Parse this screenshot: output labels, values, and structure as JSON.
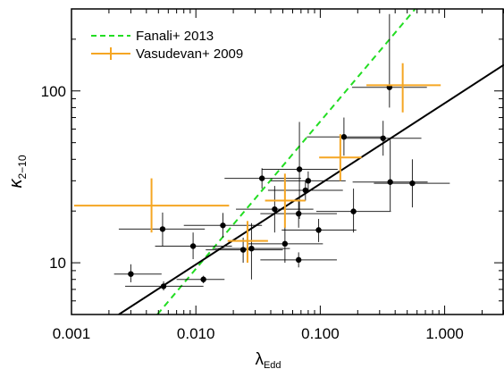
{
  "chart_data": {
    "type": "scatter",
    "x_scale": "log",
    "y_scale": "log",
    "xlim": [
      0.001,
      3.0
    ],
    "ylim": [
      5,
      300
    ],
    "xlabel_main": "λ",
    "xlabel_sub": "Edd",
    "ylabel_main": "κ",
    "ylabel_sub": "2−10",
    "x_ticks": [
      {
        "value": 0.001,
        "label": "0.001"
      },
      {
        "value": 0.01,
        "label": "0.010"
      },
      {
        "value": 0.1,
        "label": "0.100"
      },
      {
        "value": 1.0,
        "label": "1.000"
      }
    ],
    "y_ticks": [
      {
        "value": 10,
        "label": "10"
      },
      {
        "value": 100,
        "label": "100"
      }
    ],
    "legend": {
      "placement": "top-left",
      "entries": [
        {
          "label": "Fanali+ 2013",
          "color": "#22dd22",
          "style": "dashed-line"
        },
        {
          "label": "Vasudevan+ 2009",
          "color": "#f5a623",
          "style": "errorbar"
        }
      ]
    },
    "colors": {
      "black_series": "#000000",
      "orange_series": "#f5a623",
      "green_line": "#22dd22",
      "fit_line": "#000000"
    },
    "series": [
      {
        "color": "#000000",
        "marker": "circle",
        "points": [
          {
            "x": 0.003,
            "y": 8.6,
            "xerr": [
              0.0022,
              0.0053
            ],
            "yerr": [
              7.7,
              9.8
            ]
          },
          {
            "x": 0.0055,
            "y": 7.3,
            "xerr": [
              0.0027,
              0.0115
            ],
            "yerr": [
              6.9,
              7.8
            ]
          },
          {
            "x": 0.0054,
            "y": 15.7,
            "xerr": [
              0.0024,
              0.0118
            ],
            "yerr": [
              12.5,
              19.6
            ]
          },
          {
            "x": 0.0095,
            "y": 12.5,
            "xerr": [
              0.0047,
              0.0195
            ],
            "yerr": [
              10.5,
              15.0
            ]
          },
          {
            "x": 0.0115,
            "y": 8.0,
            "xerr": [
              0.007,
              0.017
            ],
            "yerr": [
              7.6,
              8.4
            ]
          },
          {
            "x": 0.0165,
            "y": 16.5,
            "xerr": [
              0.008,
              0.034
            ],
            "yerr": [
              14.0,
              19.5
            ]
          },
          {
            "x": 0.024,
            "y": 11.9,
            "xerr": [
              0.012,
              0.05
            ],
            "yerr": [
              10.0,
              14.0
            ]
          },
          {
            "x": 0.028,
            "y": 12.1,
            "xerr": [
              0.014,
              0.057
            ],
            "yerr": [
              8.0,
              17.0
            ]
          },
          {
            "x": 0.034,
            "y": 31.0,
            "xerr": [
              0.017,
              0.07
            ],
            "yerr": [
              27.0,
              35.5
            ]
          },
          {
            "x": 0.043,
            "y": 20.5,
            "xerr": [
              0.021,
              0.088
            ],
            "yerr": [
              15.0,
              28.0
            ]
          },
          {
            "x": 0.052,
            "y": 12.9,
            "xerr": [
              0.026,
              0.105
            ],
            "yerr": [
              10.0,
              16.5
            ]
          },
          {
            "x": 0.068,
            "y": 35.0,
            "xerr": [
              0.034,
              0.138
            ],
            "yerr": [
              18.0,
              66.0
            ]
          },
          {
            "x": 0.067,
            "y": 19.3,
            "xerr": [
              0.033,
              0.136
            ],
            "yerr": [
              16.0,
              23.0
            ]
          },
          {
            "x": 0.067,
            "y": 10.4,
            "xerr": [
              0.033,
              0.136
            ],
            "yerr": [
              9.4,
              11.5
            ]
          },
          {
            "x": 0.076,
            "y": 26.4,
            "xerr": [
              0.038,
              0.152
            ],
            "yerr": [
              23.0,
              30.0
            ]
          },
          {
            "x": 0.08,
            "y": 30.0,
            "xerr": [
              0.04,
              0.16
            ],
            "yerr": [
              26.0,
              34.0
            ]
          },
          {
            "x": 0.097,
            "y": 15.5,
            "xerr": [
              0.049,
              0.195
            ],
            "yerr": [
              13.2,
              18.0
            ]
          },
          {
            "x": 0.155,
            "y": 54.0,
            "xerr": [
              0.078,
              0.31
            ],
            "yerr": [
              42.0,
              70.0
            ]
          },
          {
            "x": 0.185,
            "y": 19.9,
            "xerr": [
              0.093,
              0.37
            ],
            "yerr": [
              15.0,
              27.0
            ]
          },
          {
            "x": 0.32,
            "y": 53.0,
            "xerr": [
              0.16,
              0.65
            ],
            "yerr": [
              42.0,
              67.0
            ]
          },
          {
            "x": 0.36,
            "y": 105.0,
            "xerr": [
              0.18,
              0.72
            ],
            "yerr": [
              80.0,
              280.0
            ]
          },
          {
            "x": 0.365,
            "y": 29.5,
            "xerr": [
              0.182,
              0.73
            ],
            "yerr": [
              20.0,
              52.0
            ]
          },
          {
            "x": 0.55,
            "y": 29.0,
            "xerr": [
              0.27,
              1.1
            ],
            "yerr": [
              21.0,
              40.0
            ]
          }
        ]
      },
      {
        "color": "#f5a623",
        "marker": "none",
        "points": [
          {
            "x": 0.0044,
            "y": 21.5,
            "xerr": [
              0.00105,
              0.0185
            ],
            "yerr": [
              15.0,
              31.0
            ]
          },
          {
            "x": 0.026,
            "y": 13.4,
            "xerr": [
              0.018,
              0.038
            ],
            "yerr": [
              10.0,
              17.5
            ]
          },
          {
            "x": 0.052,
            "y": 23.0,
            "xerr": [
              0.036,
              0.076
            ],
            "yerr": [
              16.0,
              33.0
            ]
          },
          {
            "x": 0.145,
            "y": 41.0,
            "xerr": [
              0.098,
              0.215
            ],
            "yerr": [
              30.0,
              56.0
            ]
          },
          {
            "x": 0.46,
            "y": 108.0,
            "xerr": [
              0.235,
              0.93
            ],
            "yerr": [
              75.0,
              145.0
            ]
          }
        ]
      }
    ],
    "lines": [
      {
        "color": "#22dd22",
        "style": "dashed",
        "from": [
          0.0049,
          5
        ],
        "to": [
          0.58,
          300
        ]
      },
      {
        "color": "#000000",
        "style": "solid",
        "from": [
          0.0024,
          5
        ],
        "to": [
          3.0,
          142
        ]
      }
    ]
  }
}
